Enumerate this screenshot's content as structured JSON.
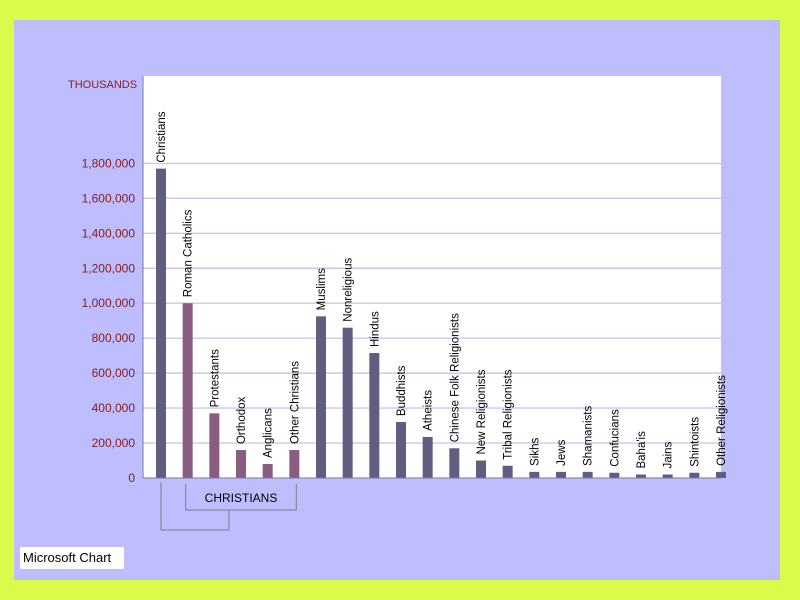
{
  "footer": {
    "label": "Microsoft Chart"
  },
  "chart_data": {
    "type": "bar",
    "ylabel": "THOUSANDS",
    "ylim": [
      0,
      2300000
    ],
    "yticks": [
      "0",
      "200,000",
      "400,000",
      "600,000",
      "800,000",
      "1,000,000",
      "1,200,000",
      "1,400,000",
      "1,600,000",
      "1,800,000"
    ],
    "ytick_values": [
      0,
      200000,
      400000,
      600000,
      800000,
      1000000,
      1200000,
      1400000,
      1600000,
      1800000
    ],
    "grid": true,
    "categories": [
      "Christians",
      "Roman Catholics",
      "Protestants",
      "Orthodox",
      "Anglicans",
      "Other Christians",
      "Muslims",
      "Nonreligious",
      "Hindus",
      "Buddhists",
      "Atheists",
      "Chinese Folk Religionists",
      "New Religionists",
      "Tribal Religionists",
      "Sikhs",
      "Jews",
      "Shamanists",
      "Confucians",
      "Baha'is",
      "Jains",
      "Shintoists",
      "Other Religionists"
    ],
    "values": [
      1770000,
      1000000,
      370000,
      160000,
      80000,
      160000,
      925000,
      860000,
      715000,
      320000,
      235000,
      170000,
      100000,
      70000,
      35000,
      35000,
      35000,
      30000,
      20000,
      20000,
      30000,
      35000
    ],
    "bar_colors": [
      "#5f5d80",
      "#8a5c82",
      "#8a5c82",
      "#8a5c82",
      "#8a5c82",
      "#8a5c82",
      "#5f5d80",
      "#5f5d80",
      "#5f5d80",
      "#5f5d80",
      "#5f5d80",
      "#5f5d80",
      "#5f5d80",
      "#5f5d80",
      "#5f5d80",
      "#5f5d80",
      "#5f5d80",
      "#5f5d80",
      "#5f5d80",
      "#5f5d80",
      "#5f5d80",
      "#5f5d80"
    ],
    "group_label": "CHRISTIANS",
    "group_members": [
      "Roman Catholics",
      "Protestants",
      "Orthodox",
      "Anglicans",
      "Other Christians"
    ]
  },
  "colors": {
    "outer_background": "#dbfb4b",
    "frame_background": "#bebdfd",
    "plot_background": "#ffffff",
    "gridline": "#c8c8ee",
    "tick_text": "#8b1b1b",
    "christian_total_bar": "#5f5d80",
    "denomination_bar": "#8a5c82"
  }
}
